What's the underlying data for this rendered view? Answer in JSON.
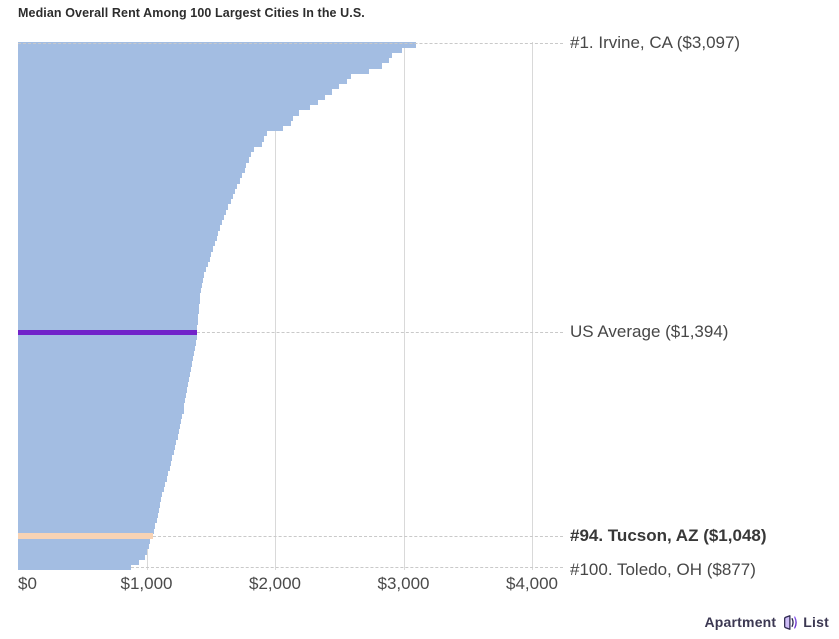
{
  "title": "Median Overall Rent Among 100 Largest Cities In the U.S.",
  "chart_data": {
    "type": "bar",
    "orientation": "horizontal",
    "title": "Median Overall Rent Among 100 Largest Cities In the U.S.",
    "x_max": 4000,
    "x_ticks": [
      "$0",
      "$1,000",
      "$2,000",
      "$3,000",
      "$4,000"
    ],
    "grid": true,
    "legend": "none",
    "description": "100 bars, one per city, ranked #1 (highest rent) at top to #100 (lowest) at bottom; a purple US Average bar is inserted after rank 55; rank 94 (Tucson) is highlighted peach.",
    "values": [
      3097,
      2990,
      2910,
      2890,
      2830,
      2735,
      2595,
      2560,
      2495,
      2440,
      2390,
      2335,
      2270,
      2190,
      2140,
      2125,
      2065,
      1935,
      1915,
      1895,
      1835,
      1815,
      1795,
      1777,
      1763,
      1745,
      1725,
      1705,
      1690,
      1672,
      1655,
      1638,
      1622,
      1606,
      1590,
      1575,
      1560,
      1546,
      1532,
      1518,
      1505,
      1492,
      1480,
      1462,
      1450,
      1440,
      1432,
      1425,
      1419,
      1414,
      1409,
      1405,
      1401,
      1398,
      1395,
      1390,
      1382,
      1374,
      1366,
      1358,
      1351,
      1344,
      1337,
      1330,
      1323,
      1316,
      1309,
      1302,
      1295,
      1288,
      1280,
      1272,
      1262,
      1252,
      1242,
      1232,
      1222,
      1212,
      1201,
      1190,
      1179,
      1168,
      1157,
      1146,
      1135,
      1124,
      1113,
      1102,
      1094,
      1086,
      1078,
      1068,
      1058,
      1048,
      1030,
      1018,
      1005,
      985,
      940,
      877
    ],
    "highlights": {
      "top": {
        "rank": 1,
        "city": "Irvine, CA",
        "value": 3097,
        "label": "#1. Irvine, CA ($3,097)"
      },
      "average": {
        "value": 1394,
        "insert_after_rank": 55,
        "label": "US Average ($1,394)"
      },
      "tucson": {
        "rank": 94,
        "city": "Tucson, AZ",
        "value": 1048,
        "label": "#94. Tucson, AZ ($1,048)",
        "bold": true
      },
      "bottom": {
        "rank": 100,
        "city": "Toledo, OH",
        "value": 877,
        "label": "#100. Toledo, OH ($877)"
      }
    },
    "colors": {
      "bar": "#a3bde2",
      "average": "#7123c9",
      "highlight": "#f8d3b4",
      "gridline": "#d9d9d9",
      "connector": "#c9c9c9"
    }
  },
  "logo": {
    "part1": "Apartment",
    "part2": "List"
  }
}
